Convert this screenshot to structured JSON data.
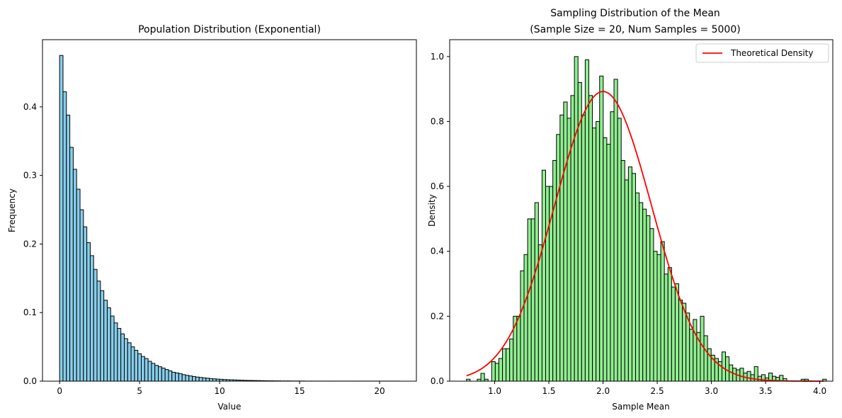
{
  "chart_data": [
    {
      "type": "bar",
      "title": "Population Distribution (Exponential)",
      "xlabel": "Value",
      "ylabel": "Frequency",
      "xlim": [
        -1.07,
        22.3
      ],
      "ylim": [
        0,
        0.498
      ],
      "xticks": [
        0,
        5,
        10,
        15,
        20
      ],
      "yticks": [
        0.0,
        0.1,
        0.2,
        0.3,
        0.4
      ],
      "tick_decimals": 1,
      "grid": false,
      "bar_color": "#87CEEB",
      "edge_color": "#000000",
      "bin_start": 0.0,
      "bin_width": 0.2127,
      "values": [
        0.475,
        0.422,
        0.388,
        0.341,
        0.309,
        0.28,
        0.25,
        0.225,
        0.202,
        0.183,
        0.163,
        0.146,
        0.132,
        0.118,
        0.107,
        0.095,
        0.085,
        0.077,
        0.069,
        0.062,
        0.056,
        0.05,
        0.045,
        0.04,
        0.036,
        0.033,
        0.029,
        0.026,
        0.023,
        0.021,
        0.019,
        0.017,
        0.015,
        0.013,
        0.012,
        0.011,
        0.0095,
        0.0085,
        0.0076,
        0.0068,
        0.006,
        0.0054,
        0.0048,
        0.0043,
        0.0038,
        0.0034,
        0.003,
        0.0027,
        0.0024,
        0.0022,
        0.002,
        0.0018,
        0.0016,
        0.0014,
        0.0012,
        0.0011,
        0.001,
        0.0009,
        0.0008,
        0.0007,
        0.0006,
        0.0005,
        0.0005,
        0.0004,
        0.0004,
        0.0003,
        0.0003,
        0.0003,
        0.0002,
        0.0002,
        0.0002,
        0.0002,
        0.0001,
        0.0001,
        0.0001,
        0.0001,
        0.0001,
        0.0001,
        0.0001,
        0.0001,
        0.0001,
        0.0001,
        0.0001,
        0.0001,
        0.0001,
        0.0001,
        0.0001,
        0.0001,
        0.0001,
        0.0001,
        0.0001,
        0.0001,
        0.0001,
        0.0001,
        0.0001,
        0.0001,
        0.0001,
        0.0001,
        0.0001,
        0.0001
      ]
    },
    {
      "type": "bar",
      "title": "Sampling Distribution of the Mean\n(Sample Size = 20, Num Samples = 5000)",
      "xlabel": "Sample Mean",
      "ylabel": "Density",
      "xlim": [
        0.585,
        4.12
      ],
      "ylim": [
        0,
        1.052
      ],
      "xticks": [
        1.0,
        1.5,
        2.0,
        2.5,
        3.0,
        3.5,
        4.0
      ],
      "yticks": [
        0.0,
        0.2,
        0.4,
        0.6,
        0.8,
        1.0
      ],
      "tick_decimals": 1,
      "grid": false,
      "bar_color": "#90EE90",
      "edge_color": "#000000",
      "bin_start": 0.74,
      "bin_width": 0.0332,
      "values": [
        0.006,
        0.0,
        0.0,
        0.006,
        0.024,
        0.006,
        0.0,
        0.06,
        0.055,
        0.07,
        0.1,
        0.1,
        0.13,
        0.2,
        0.2,
        0.34,
        0.39,
        0.5,
        0.5,
        0.55,
        0.42,
        0.65,
        0.6,
        0.6,
        0.68,
        0.76,
        0.82,
        0.86,
        0.81,
        0.88,
        1.0,
        0.92,
        0.82,
        0.99,
        0.88,
        0.78,
        0.8,
        0.94,
        0.75,
        0.73,
        0.83,
        0.93,
        0.81,
        0.68,
        0.62,
        0.66,
        0.64,
        0.58,
        0.55,
        0.53,
        0.51,
        0.47,
        0.4,
        0.39,
        0.43,
        0.33,
        0.35,
        0.29,
        0.3,
        0.25,
        0.24,
        0.21,
        0.16,
        0.19,
        0.15,
        0.2,
        0.14,
        0.1,
        0.08,
        0.07,
        0.06,
        0.09,
        0.075,
        0.05,
        0.04,
        0.035,
        0.04,
        0.025,
        0.03,
        0.02,
        0.045,
        0.015,
        0.02,
        0.01,
        0.025,
        0.015,
        0.012,
        0.018,
        0.008,
        0.0,
        0.0,
        0.0,
        0.0,
        0.006,
        0.006,
        0.0,
        0.0,
        0.0,
        0.0,
        0.006
      ],
      "curve": {
        "name": "Theoretical Density",
        "color": "#FF0000",
        "mean": 2.0,
        "sd": 0.447,
        "x_range": [
          0.74,
          4.04
        ]
      },
      "legend": {
        "placement": "top-right",
        "entries": [
          "Theoretical Density"
        ]
      }
    }
  ]
}
